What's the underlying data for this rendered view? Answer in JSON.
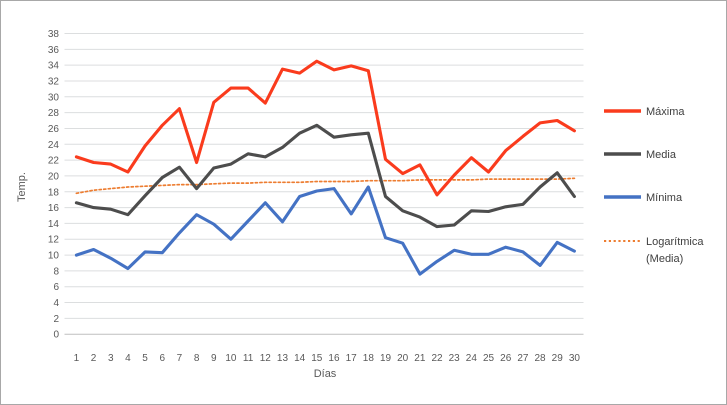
{
  "chart_data": {
    "type": "line",
    "title": "",
    "xlabel": "Días",
    "ylabel": "Temp.",
    "x": [
      1,
      2,
      3,
      4,
      5,
      6,
      7,
      8,
      9,
      10,
      11,
      12,
      13,
      14,
      15,
      16,
      17,
      18,
      19,
      20,
      21,
      22,
      23,
      24,
      25,
      26,
      27,
      28,
      29,
      30
    ],
    "y_axis": {
      "min": 0,
      "max": 38,
      "tick_step": 2
    },
    "grid": "horizontal",
    "legend_position": "right",
    "series": [
      {
        "key": "maxima",
        "name": "Máxima",
        "color": "#FA3B1D",
        "style": "solid",
        "values": [
          22.4,
          21.7,
          21.5,
          20.5,
          23.8,
          26.4,
          28.5,
          21.7,
          29.3,
          31.1,
          31.1,
          29.2,
          33.5,
          33.0,
          34.5,
          33.4,
          33.9,
          33.3,
          22.1,
          20.3,
          21.4,
          17.6,
          20.1,
          22.3,
          20.5,
          23.2,
          25.0,
          26.7,
          27.0,
          25.7
        ]
      },
      {
        "key": "media",
        "name": "Media",
        "color": "#4D4D4D",
        "style": "solid",
        "values": [
          16.6,
          16.0,
          15.8,
          15.1,
          17.5,
          19.8,
          21.1,
          18.4,
          21.0,
          21.5,
          22.8,
          22.4,
          23.6,
          25.4,
          26.4,
          24.9,
          25.2,
          25.4,
          17.4,
          15.6,
          14.8,
          13.6,
          13.8,
          15.6,
          15.5,
          16.1,
          16.4,
          18.6,
          20.4,
          17.4
        ]
      },
      {
        "key": "minima",
        "name": "Mínima",
        "color": "#4472C4",
        "style": "solid",
        "values": [
          10.0,
          10.7,
          9.6,
          8.3,
          10.4,
          10.3,
          12.8,
          15.1,
          13.9,
          12.0,
          14.3,
          16.6,
          14.2,
          17.4,
          18.1,
          18.4,
          15.2,
          18.6,
          12.2,
          11.5,
          7.6,
          9.2,
          10.6,
          10.1,
          10.1,
          11.0,
          10.4,
          8.7,
          11.6,
          10.5
        ]
      },
      {
        "key": "logaritmica-media",
        "name": "Logarítmica (Media)",
        "legend_line1": "Logarítmica",
        "legend_line2": "(Media)",
        "color": "#ED7D31",
        "style": "dotted",
        "values": [
          17.8,
          18.2,
          18.4,
          18.6,
          18.7,
          18.8,
          18.9,
          18.9,
          19.0,
          19.1,
          19.1,
          19.2,
          19.2,
          19.2,
          19.3,
          19.3,
          19.3,
          19.4,
          19.4,
          19.4,
          19.5,
          19.5,
          19.5,
          19.5,
          19.6,
          19.6,
          19.6,
          19.6,
          19.6,
          19.7
        ]
      }
    ]
  }
}
